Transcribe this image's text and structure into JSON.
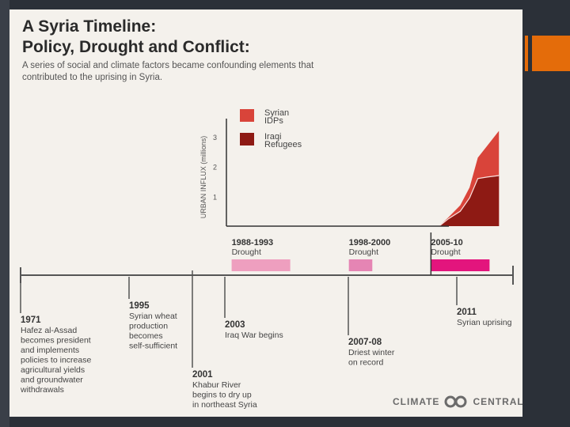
{
  "title": {
    "line1": "A Syria Timeline:",
    "line2": "Policy, Drought and Conflict:",
    "subtitle": "A series of social and climate factors became confounding elements that contributed to the uprising in Syria."
  },
  "chart_data": {
    "type": "area",
    "ylabel": "URBAN INFLUX (millions)",
    "yticks": [
      1,
      2,
      3
    ],
    "ylim": [
      0,
      3.4
    ],
    "x": [
      2005.7,
      2006.5,
      2007.5,
      2008.3,
      2009.0,
      2009.8,
      2010.8
    ],
    "series": [
      {
        "name": "Iraqi Refugees",
        "color": "#8e1a14",
        "values": [
          0.0,
          0.25,
          0.5,
          0.95,
          1.6,
          1.65,
          1.7
        ]
      },
      {
        "name": "Syrian IDPs",
        "color": "#d9443a",
        "values": [
          0.0,
          0.3,
          0.7,
          1.3,
          2.3,
          2.7,
          3.2
        ]
      }
    ],
    "legend": [
      {
        "label_line1": "Syrian",
        "label_line2": "IDPs",
        "color": "#d9443a"
      },
      {
        "label_line1": "Iraqi",
        "label_line2": "Refugees",
        "color": "#8e1a14"
      }
    ],
    "timeline": {
      "range": [
        1970,
        2012
      ],
      "droughts": [
        {
          "years": "1988-1993",
          "label": "Drought",
          "start": 1988,
          "end": 1993,
          "color": "#ee9fbf"
        },
        {
          "years": "1998-2000",
          "label": "Drought",
          "start": 1998,
          "end": 2000,
          "color": "#e585b4"
        },
        {
          "years": "2005-10",
          "label": "Drought",
          "start": 2005,
          "end": 2010,
          "color": "#e3157d"
        }
      ],
      "events": [
        {
          "year": "1971",
          "text": [
            "Hafez al-Assad",
            "becomes president",
            "and implements",
            "policies to increase",
            "agricultural yields",
            "and groundwater",
            "withdrawals"
          ]
        },
        {
          "year": "1995",
          "text": [
            "Syrian wheat",
            "production",
            "becomes",
            "self-sufficient"
          ]
        },
        {
          "year": "2001",
          "text": [
            "Khabur River",
            "begins to dry up",
            "in northeast Syria"
          ]
        },
        {
          "year": "2003",
          "text": [
            "Iraq War begins"
          ]
        },
        {
          "year": "2007-08",
          "text": [
            "Driest winter",
            "on record"
          ]
        },
        {
          "year": "2011",
          "text": [
            "Syrian uprising"
          ]
        }
      ]
    }
  },
  "logo": {
    "left": "CLIMATE",
    "right": "CENTRAL"
  },
  "colors": {
    "accent": "#e46c0a",
    "background": "#2b3038",
    "panel": "#f4f1ec"
  }
}
